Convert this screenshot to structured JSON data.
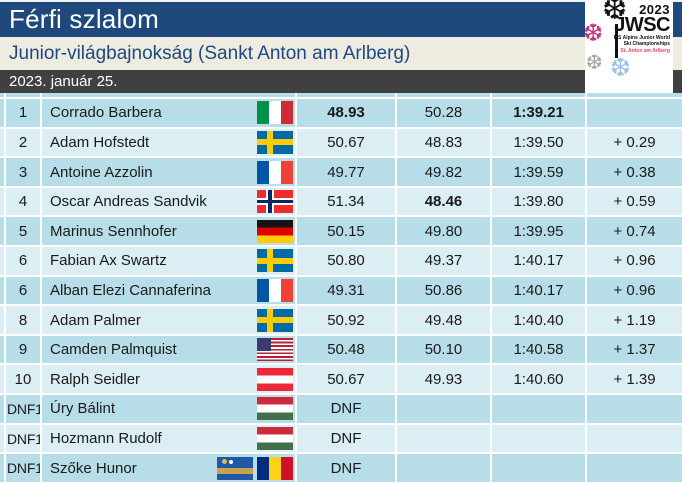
{
  "header": {
    "title": "Férfi szlalom",
    "subtitle": "Junior-világbajnokság (Sankt Anton am Arlberg)",
    "date": "2023. január 25."
  },
  "logo": {
    "year": "2023",
    "acronym": "JWSC",
    "line1": "FIS Alpine Junior World",
    "line2": "Ski Championships",
    "line3": "St. Anton am Arlberg"
  },
  "colors": {
    "title_bar": "#1F497D",
    "subtitle_bar": "#EEECE1",
    "subtitle_text": "#1F497D",
    "date_bar": "#404040",
    "row_dark": "#B7DEE8",
    "row_light": "#DAEEF3",
    "grid_line": "#FFFFFF",
    "logo_pink": "#C2367C",
    "logo_gray": "#A6A6A6",
    "logo_blue": "#9CC3E5",
    "logo_red": "#E8436B"
  },
  "results": {
    "rows": [
      {
        "rank": "1",
        "name": "Corrado Barbera",
        "flags": [
          "italy"
        ],
        "run1": "48.93",
        "run1_bold": true,
        "run2": "50.28",
        "total": "1:39.21",
        "total_bold": true,
        "diff": "",
        "dnf": false
      },
      {
        "rank": "2",
        "name": "Adam Hofstedt",
        "flags": [
          "sweden"
        ],
        "run1": "50.67",
        "run2": "48.83",
        "total": "1:39.50",
        "diff": "+ 0.29",
        "dnf": false
      },
      {
        "rank": "3",
        "name": "Antoine Azzolin",
        "flags": [
          "france"
        ],
        "run1": "49.77",
        "run2": "49.82",
        "total": "1:39.59",
        "diff": "+ 0.38",
        "dnf": false
      },
      {
        "rank": "4",
        "name": "Oscar Andreas Sandvik",
        "flags": [
          "norway"
        ],
        "run1": "51.34",
        "run2": "48.46",
        "run2_bold": true,
        "total": "1:39.80",
        "diff": "+ 0.59",
        "dnf": false
      },
      {
        "rank": "5",
        "name": "Marinus Sennhofer",
        "flags": [
          "germany"
        ],
        "run1": "50.15",
        "run2": "49.80",
        "total": "1:39.95",
        "diff": "+ 0.74",
        "dnf": false
      },
      {
        "rank": "6",
        "name": "Fabian Ax Swartz",
        "flags": [
          "sweden"
        ],
        "run1": "50.80",
        "run2": "49.37",
        "total": "1:40.17",
        "diff": "+ 0.96",
        "dnf": false
      },
      {
        "rank": "6",
        "name": "Alban Elezi Cannaferina",
        "flags": [
          "france"
        ],
        "run1": "49.31",
        "run2": "50.86",
        "total": "1:40.17",
        "diff": "+ 0.96",
        "dnf": false
      },
      {
        "rank": "8",
        "name": "Adam Palmer",
        "flags": [
          "sweden"
        ],
        "run1": "50.92",
        "run2": "49.48",
        "total": "1:40.40",
        "diff": "+ 1.19",
        "dnf": false
      },
      {
        "rank": "9",
        "name": "Camden Palmquist",
        "flags": [
          "usa"
        ],
        "run1": "50.48",
        "run2": "50.10",
        "total": "1:40.58",
        "diff": "+ 1.37",
        "dnf": false
      },
      {
        "rank": "10",
        "name": "Ralph Seidler",
        "flags": [
          "austria"
        ],
        "run1": "50.67",
        "run2": "49.93",
        "total": "1:40.60",
        "diff": "+ 1.39",
        "dnf": false
      },
      {
        "rank": "DNF1",
        "name": "Úry Bálint",
        "flags": [
          "hungary"
        ],
        "run1": "DNF",
        "run2": "",
        "total": "",
        "diff": "",
        "dnf": true
      },
      {
        "rank": "DNF1",
        "name": "Hozmann Rudolf",
        "flags": [
          "hungary"
        ],
        "run1": "DNF",
        "run2": "",
        "total": "",
        "diff": "",
        "dnf": true
      },
      {
        "rank": "DNF1",
        "name": "Szőke Hunor",
        "flags": [
          "szekely-land",
          "romania"
        ],
        "run1": "DNF",
        "run2": "",
        "total": "",
        "diff": "",
        "dnf": true
      }
    ]
  }
}
